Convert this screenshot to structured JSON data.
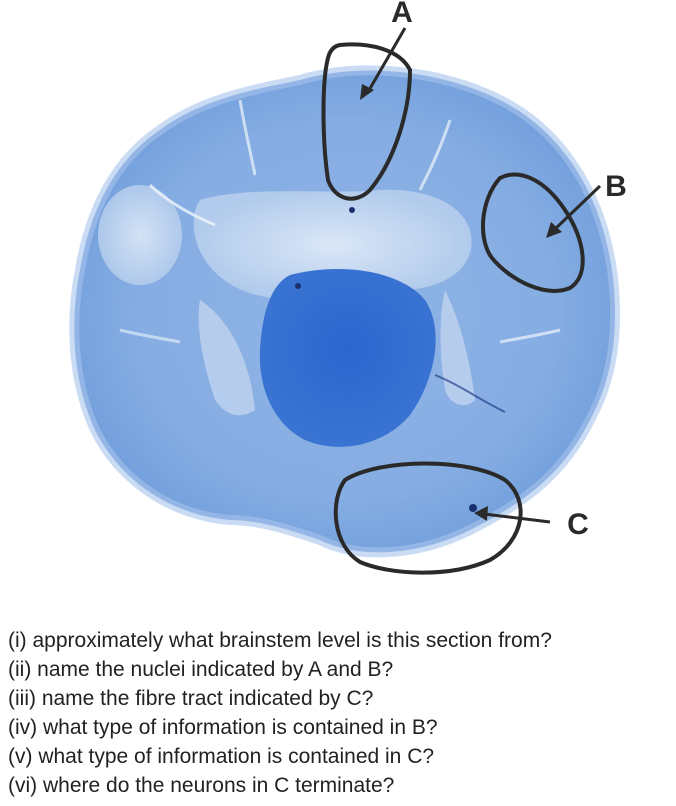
{
  "figure": {
    "labels": {
      "a": "A",
      "b": "B",
      "c": "C"
    },
    "colors": {
      "stain_dark": "#1d58c4",
      "stain_mid": "#6c9cdd",
      "stain_light": "#a9c6ec",
      "pale_nucleus": "#d7e4f4",
      "outline": "#2a2a2a"
    }
  },
  "questions": [
    "(i) approximately what brainstem level is this section from?",
    "(ii) name the nuclei indicated by A and B?",
    "(iii) name the fibre tract indicated by C?",
    "(iv) what type of information is contained in B?",
    "(v) what type of information is contained in C?",
    "(vi) where do the neurons in C terminate?"
  ]
}
